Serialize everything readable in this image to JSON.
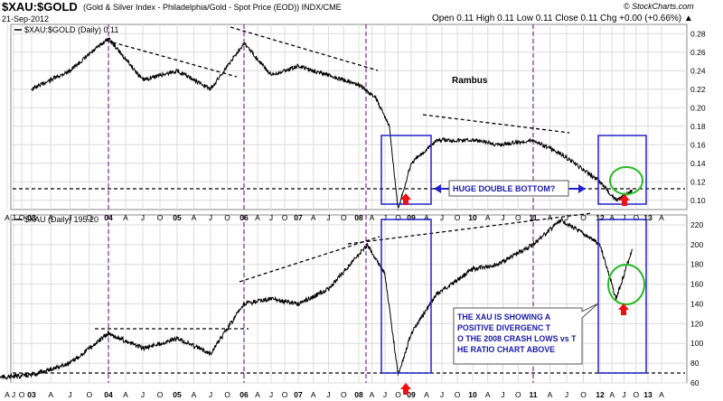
{
  "header": {
    "symbol": "$XAU:$GOLD",
    "description": "(Gold & Silver Index - Philadelphia/Gold - Spot Price (EOD)) INDX/CME",
    "copyright": "© StockCharts.com",
    "date": "21-Sep-2012",
    "quote": "Open 0.11   High 0.11   Low 0.11   Close 0.11   Chg +0.00 (+0.66%) ▲"
  },
  "chart_data": [
    {
      "type": "line",
      "panel": "top",
      "legend": "$XAU:$GOLD (Daily) 0.11",
      "y_ticks": [
        "0.28",
        "0.26",
        "0.24",
        "0.22",
        "0.20",
        "0.18",
        "0.16",
        "0.14",
        "0.12",
        "0.10"
      ],
      "ylim": [
        0.09,
        0.29
      ],
      "x_years": [
        "03",
        "04",
        "05",
        "06",
        "07",
        "08",
        "09",
        "10",
        "11",
        "12",
        "13"
      ],
      "x": [
        "2003-01",
        "2003-07",
        "2004-01",
        "2004-07",
        "2005-01",
        "2005-07",
        "2006-01",
        "2006-07",
        "2007-01",
        "2007-07",
        "2008-01",
        "2008-05",
        "2008-08",
        "2008-10",
        "2009-01",
        "2009-06",
        "2010-01",
        "2010-06",
        "2011-01",
        "2011-06",
        "2012-01",
        "2012-05",
        "2012-09"
      ],
      "values": [
        0.22,
        0.24,
        0.275,
        0.23,
        0.24,
        0.22,
        0.27,
        0.235,
        0.245,
        0.235,
        0.225,
        0.21,
        0.18,
        0.09,
        0.14,
        0.165,
        0.165,
        0.16,
        0.165,
        0.15,
        0.12,
        0.1,
        0.11
      ],
      "annotations": {
        "watermark": "Rambus",
        "callout": "HUGE DOUBLE BOTTOM?"
      }
    },
    {
      "type": "line",
      "panel": "bottom",
      "legend": "$XAU (Daily) 195.20",
      "y_ticks": [
        "220",
        "200",
        "180",
        "160",
        "140",
        "120",
        "100",
        "80",
        "60"
      ],
      "ylim": [
        60,
        230
      ],
      "x_years": [
        "03",
        "04",
        "05",
        "06",
        "07",
        "08",
        "09",
        "10",
        "11",
        "12",
        "13"
      ],
      "x": [
        "2002-07",
        "2003-01",
        "2003-07",
        "2004-01",
        "2004-07",
        "2005-01",
        "2005-07",
        "2006-01",
        "2006-07",
        "2007-01",
        "2007-07",
        "2008-03",
        "2008-07",
        "2008-10",
        "2009-01",
        "2009-06",
        "2010-01",
        "2010-06",
        "2011-01",
        "2011-06",
        "2012-01",
        "2012-05",
        "2012-09"
      ],
      "values": [
        65,
        68,
        80,
        110,
        95,
        105,
        90,
        140,
        145,
        140,
        155,
        200,
        170,
        68,
        110,
        150,
        175,
        180,
        200,
        225,
        200,
        145,
        195
      ],
      "annotations": {
        "callout": "THE XAU IS SHOWING A POSITIVE DIVERGENC TO THE 2008 CRASH LOWS vs THE RATIO CHART ABOVE"
      }
    }
  ],
  "x_month_labels": [
    "A",
    "J",
    "O",
    "03",
    "A",
    "J",
    "O",
    "04",
    "A",
    "J",
    "O",
    "05",
    "A",
    "J",
    "O",
    "06",
    "A",
    "J",
    "O",
    "07",
    "A",
    "J",
    "O",
    "08",
    "A",
    "J",
    "O",
    "09",
    "A",
    "J",
    "O",
    "10",
    "A",
    "J",
    "O",
    "11",
    "A",
    "J",
    "O",
    "12",
    "A",
    "J",
    "O",
    "13",
    "A"
  ],
  "colors": {
    "line": "#000000",
    "box": "#2222cc",
    "grid": "#dcdcdc",
    "marker": "#ee1111",
    "circle": "#22bb22",
    "divider": "#7b2d8e",
    "callout_text": "#1a1aa8"
  }
}
